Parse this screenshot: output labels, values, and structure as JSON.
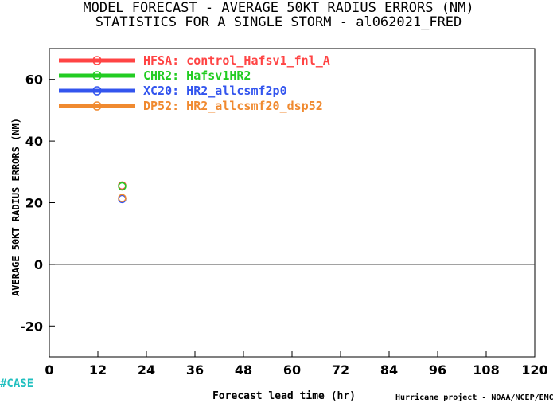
{
  "chart_data": {
    "type": "scatter",
    "title": "MODEL FORECAST - AVERAGE 50KT RADIUS ERRORS (NM)",
    "subtitle": "STATISTICS FOR A SINGLE STORM - al062021_FRED",
    "xlabel": "Forecast lead time (hr)",
    "ylabel": "AVERAGE 50KT RADIUS ERRORS (NM)",
    "xlim": [
      0,
      120
    ],
    "ylim": [
      -30,
      70
    ],
    "xticks": [
      0,
      12,
      24,
      36,
      48,
      60,
      72,
      84,
      96,
      108,
      120
    ],
    "yticks": [
      -20,
      0,
      20,
      40,
      60
    ],
    "zero_line": true,
    "grid": false,
    "legend_position": "top-left",
    "series": [
      {
        "name": "HFSA: control_Hafsv1_fnl_A",
        "color": "#ff4444",
        "x": [
          18
        ],
        "y": [
          25.6
        ]
      },
      {
        "name": "CHR2: Hafsv1HR2",
        "color": "#22cc22",
        "x": [
          18
        ],
        "y": [
          25.3
        ]
      },
      {
        "name": "XC20: HR2_allcsmf2p0",
        "color": "#3355ee",
        "x": [
          18
        ],
        "y": [
          21.2
        ]
      },
      {
        "name": "DP52: HR2_allcsmf20_dsp52",
        "color": "#f08a30",
        "x": [
          18
        ],
        "y": [
          21.5
        ]
      }
    ]
  },
  "case_label": "#CASE",
  "credit": "Hurricane project - NOAA/NCEP/EMC"
}
